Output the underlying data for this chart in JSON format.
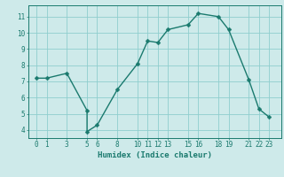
{
  "xlabel": "Humidex (Indice chaleur)",
  "x": [
    0,
    1,
    3,
    5,
    5,
    6,
    8,
    10,
    11,
    12,
    13,
    15,
    16,
    18,
    19,
    21,
    22,
    23
  ],
  "y": [
    7.2,
    7.2,
    7.5,
    5.2,
    3.9,
    4.3,
    6.5,
    8.1,
    9.5,
    9.4,
    10.2,
    10.5,
    11.2,
    11.0,
    10.2,
    7.1,
    5.3,
    4.8
  ],
  "line_color": "#1a7a6e",
  "bg_color": "#ceeaea",
  "grid_color": "#8fcece",
  "tick_color": "#1a7a6e",
  "label_color": "#1a7a6e",
  "ylim": [
    3.5,
    11.7
  ],
  "xlim": [
    -0.8,
    24.2
  ],
  "yticks": [
    4,
    5,
    6,
    7,
    8,
    9,
    10,
    11
  ],
  "xticks": [
    0,
    1,
    3,
    5,
    6,
    8,
    10,
    11,
    12,
    13,
    15,
    16,
    18,
    19,
    21,
    22,
    23
  ],
  "marker_size": 2.5,
  "line_width": 1.0,
  "tick_fontsize": 5.5,
  "xlabel_fontsize": 6.5
}
